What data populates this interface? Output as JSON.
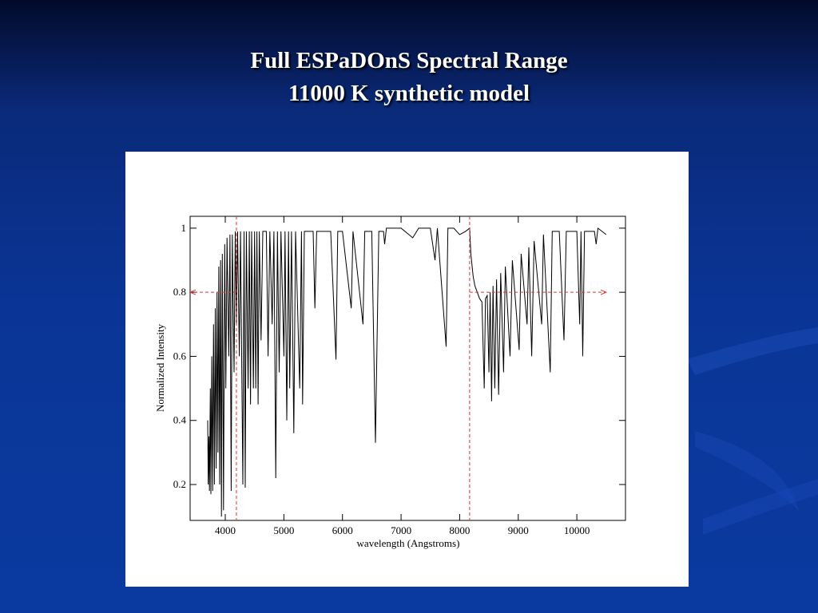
{
  "chart_data": {
    "type": "line",
    "title": [
      "Full ESPaDOnS Spectral Range",
      "11000 K synthetic model"
    ],
    "x_label": "wavelength (Angstroms)",
    "y_label": "Normalized Intensity",
    "xlim": [
      3400,
      10830
    ],
    "ylim": [
      0.088,
      1.037
    ],
    "xticks": [
      4000,
      5000,
      6000,
      7000,
      8000,
      9000,
      10000
    ],
    "yticks": [
      0.2,
      0.4,
      0.6,
      0.8,
      1
    ],
    "color": "#000000",
    "reference_lines": {
      "color": "#e03030",
      "x": [
        4190,
        8170
      ],
      "y": 0.8,
      "arrows": [
        [
          4190,
          3400
        ],
        [
          8170,
          10500
        ]
      ]
    },
    "x": [
      3700,
      3710,
      3720,
      3730,
      3745,
      3755,
      3770,
      3785,
      3800,
      3815,
      3830,
      3845,
      3860,
      3875,
      3890,
      3905,
      3920,
      3935,
      3950,
      3970,
      3990,
      4010,
      4030,
      4060,
      4080,
      4101,
      4120,
      4150,
      4170,
      4190,
      4210,
      4240,
      4260,
      4300,
      4320,
      4340,
      4360,
      4390,
      4410,
      4430,
      4450,
      4480,
      4500,
      4520,
      4540,
      4560,
      4580,
      4610,
      4640,
      4700,
      4730,
      4760,
      4800,
      4830,
      4861,
      4890,
      4920,
      4950,
      5000,
      5020,
      5050,
      5080,
      5100,
      5130,
      5170,
      5200,
      5270,
      5300,
      5320,
      5350,
      5500,
      5530,
      5560,
      5800,
      5890,
      5920,
      6000,
      6150,
      6180,
      6350,
      6380,
      6500,
      6563,
      6620,
      6700,
      6720,
      6750,
      7000,
      7200,
      7300,
      7500,
      7580,
      7620,
      7770,
      7800,
      7900,
      8000,
      8100,
      8170,
      8190,
      8230,
      8260,
      8300,
      8340,
      8380,
      8420,
      8440,
      8470,
      8500,
      8520,
      8545,
      8570,
      8600,
      8630,
      8665,
      8700,
      8750,
      8780,
      8860,
      8900,
      9015,
      9050,
      9150,
      9180,
      9230,
      9270,
      9400,
      9430,
      9546,
      9580,
      9700,
      9780,
      9820,
      10000,
      10049,
      10070,
      10100,
      10130,
      10300,
      10330,
      10360,
      10500
    ],
    "values": [
      0.4,
      0.2,
      0.35,
      0.18,
      0.5,
      0.17,
      0.6,
      0.18,
      0.7,
      0.2,
      0.75,
      0.25,
      0.8,
      0.3,
      0.88,
      0.2,
      0.9,
      0.1,
      0.92,
      0.12,
      0.95,
      0.5,
      0.97,
      0.6,
      0.98,
      0.18,
      0.98,
      0.55,
      0.99,
      0.7,
      0.99,
      0.6,
      0.99,
      0.2,
      0.99,
      0.19,
      0.99,
      0.5,
      0.99,
      0.45,
      0.99,
      0.5,
      0.99,
      0.5,
      0.99,
      0.45,
      0.99,
      0.65,
      0.99,
      0.99,
      0.6,
      0.99,
      0.7,
      0.99,
      0.22,
      0.99,
      0.55,
      0.99,
      0.6,
      0.99,
      0.4,
      0.99,
      0.5,
      0.99,
      0.36,
      0.99,
      0.5,
      0.99,
      0.45,
      0.99,
      0.99,
      0.75,
      0.99,
      0.99,
      0.59,
      0.99,
      0.99,
      0.75,
      0.99,
      0.7,
      0.99,
      0.99,
      0.33,
      0.99,
      0.99,
      0.95,
      1.0,
      1.0,
      0.97,
      1.0,
      1.0,
      0.9,
      1.0,
      0.63,
      1.0,
      1.0,
      0.98,
      0.99,
      1.0,
      0.92,
      0.85,
      0.82,
      0.8,
      0.78,
      0.77,
      0.5,
      0.78,
      0.79,
      0.55,
      0.8,
      0.46,
      0.82,
      0.5,
      0.84,
      0.48,
      0.86,
      0.55,
      0.88,
      0.6,
      0.9,
      0.62,
      0.92,
      0.7,
      0.94,
      0.6,
      0.96,
      0.7,
      0.98,
      0.55,
      0.99,
      0.99,
      0.65,
      0.99,
      0.99,
      0.7,
      0.99,
      0.6,
      0.99,
      0.99,
      0.95,
      1.0,
      0.98
    ]
  }
}
